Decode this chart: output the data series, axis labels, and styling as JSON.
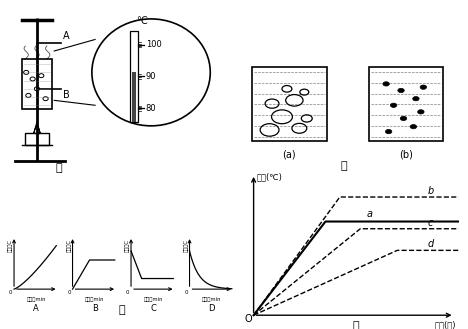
{
  "bg_color": "#ffffff",
  "title_jia": "甲",
  "title_yi": "乙",
  "title_bing": "丙",
  "title_ding": "丁",
  "label_A": "A",
  "label_B": "B",
  "label_a_beaker": "(a)",
  "label_b_beaker": "(b)",
  "ding_xlabel": "时间(分)",
  "ding_ylabel": "温度(℃)",
  "bing_ylabel": "温度／C",
  "bing_xlabel": "时间／min",
  "thermometer_labels": [
    "80",
    "90",
    "100"
  ],
  "celsius_label": "℃",
  "curve_labels": [
    "b",
    "a",
    "c",
    "d"
  ],
  "graph_labels": [
    "A",
    "B",
    "C",
    "D"
  ]
}
